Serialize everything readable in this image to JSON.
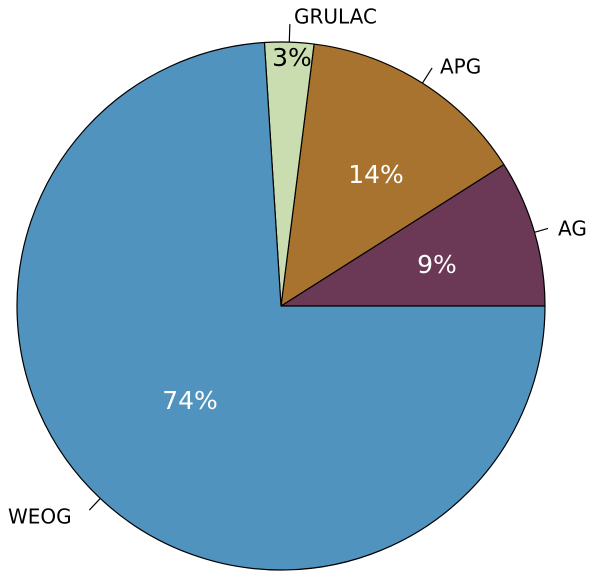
{
  "chart_data": {
    "type": "pie",
    "title": "",
    "start_angle_deg": 0,
    "direction": "counterclockwise",
    "slices": [
      {
        "label": "AG",
        "value": 9,
        "value_label": "9%",
        "color": "#6B3855",
        "label_color": "#ffffff"
      },
      {
        "label": "APG",
        "value": 14,
        "value_label": "14%",
        "color": "#A8732E",
        "label_color": "#ffffff"
      },
      {
        "label": "GRULAC",
        "value": 3,
        "value_label": "3%",
        "color": "#C9DDB0",
        "label_color": "#000000"
      },
      {
        "label": "WEOG",
        "value": 74,
        "value_label": "74%",
        "color": "#5093BF",
        "label_color": "#ffffff"
      }
    ]
  }
}
